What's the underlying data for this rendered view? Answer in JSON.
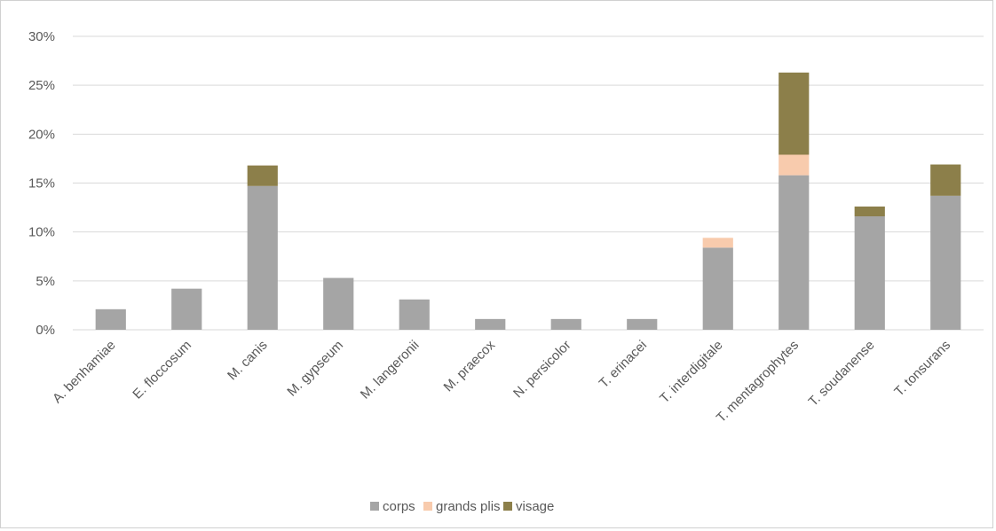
{
  "chart_data": {
    "type": "bar",
    "stacked": true,
    "categories": [
      "A. benhamiae",
      "E. floccosum",
      "M. canis",
      "M. gypseum",
      "M. langeronii",
      "M. praecox",
      "N. persicolor",
      "T. erinacei",
      "T. interdigitale",
      "T. mentagrophytes",
      "T. soudanense",
      "T. tonsurans"
    ],
    "series": [
      {
        "name": "corps",
        "color": "#a5a5a5",
        "values": [
          2.1,
          4.2,
          14.7,
          5.3,
          3.1,
          1.1,
          1.1,
          1.1,
          8.4,
          15.8,
          11.6,
          13.7
        ]
      },
      {
        "name": "grands plis",
        "color": "#f8cbad",
        "values": [
          0,
          0,
          0,
          0,
          0,
          0,
          0,
          0,
          1.0,
          2.1,
          0,
          0
        ]
      },
      {
        "name": "visage",
        "color": "#8c7f4a",
        "values": [
          0,
          0,
          2.1,
          0,
          0,
          0,
          0,
          0,
          0,
          8.4,
          1.0,
          3.2
        ]
      }
    ],
    "yticks": [
      "0%",
      "5%",
      "10%",
      "15%",
      "20%",
      "25%",
      "30%"
    ],
    "ylim": [
      0,
      30
    ],
    "ylabel": "",
    "xlabel": "",
    "title": "",
    "grid": true,
    "legend_position": "bottom"
  }
}
